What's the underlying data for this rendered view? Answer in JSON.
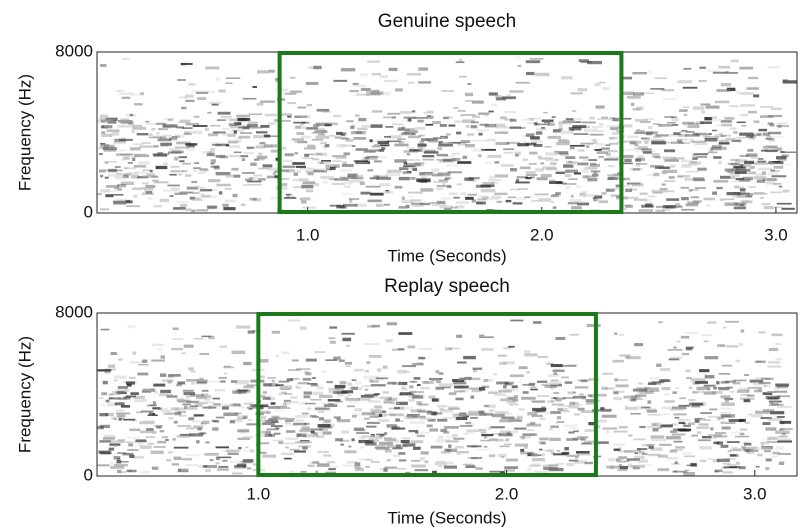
{
  "chart_data": [
    {
      "type": "spectrogram",
      "title": "Genuine speech",
      "x_label": "Time (Seconds)",
      "y_label": "Frequency (Hz)",
      "xlim": [
        0.1,
        3.09
      ],
      "xticks": [
        {
          "value": 1,
          "label": "1.0"
        },
        {
          "value": 2,
          "label": "2.0"
        },
        {
          "value": 3,
          "label": "3.0"
        }
      ],
      "ylim": [
        0,
        8000
      ],
      "yticks": [
        0,
        8000
      ],
      "highlight": {
        "xlim": [
          0.88,
          2.34
        ],
        "color": "#1a7a1a"
      }
    },
    {
      "type": "spectrogram",
      "title": "Replay speech",
      "x_label": "Time (Seconds)",
      "y_label": "Frequency (Hz)",
      "xlim": [
        0.35,
        3.17
      ],
      "xticks": [
        {
          "value": 1,
          "label": "1.0"
        },
        {
          "value": 2,
          "label": "2.0"
        },
        {
          "value": 3,
          "label": "3.0"
        }
      ],
      "ylim": [
        0,
        8000
      ],
      "yticks": [
        0,
        8000
      ],
      "highlight": {
        "xlim": [
          1.0,
          2.36
        ],
        "color": "#1a7a1a"
      }
    }
  ]
}
